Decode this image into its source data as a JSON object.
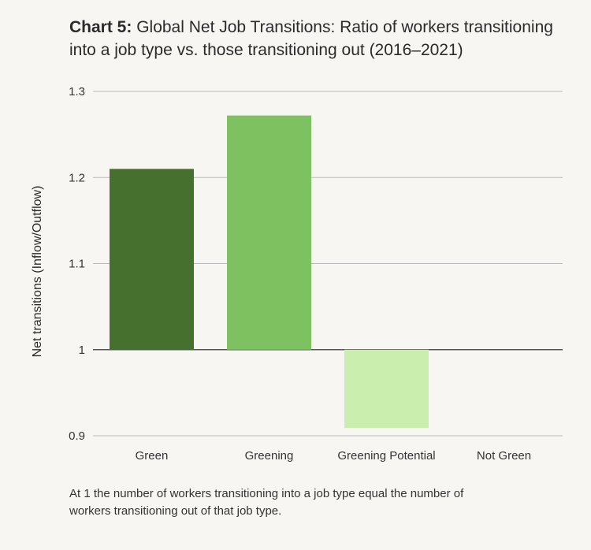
{
  "title": {
    "lead": "Chart 5:",
    "text": " Global Net Job Transitions: Ratio of workers transitioning into a job type vs. those transitioning out (2016–2021)"
  },
  "footnote": "At 1 the number of workers transitioning into a job type equal the number of workers transitioning out of that job type.",
  "chart_data": {
    "type": "bar",
    "categories": [
      "Green",
      "Greening",
      "Greening Potential",
      "Not Green"
    ],
    "values": [
      1.21,
      1.272,
      0.909,
      1.0
    ],
    "colors": [
      "#45702e",
      "#7dc160",
      "#c9eead",
      "#c9eead"
    ],
    "baseline": 1,
    "ylabel": "Net transitions (Inflow/Outflow)",
    "xlabel": "",
    "ylim": [
      0.9,
      1.3
    ],
    "yticks": [
      0.9,
      1,
      1.1,
      1.2,
      1.3
    ],
    "ytick_labels": [
      "0.9",
      "1",
      "1.1",
      "1.2",
      "1.3"
    ],
    "grid": true
  }
}
